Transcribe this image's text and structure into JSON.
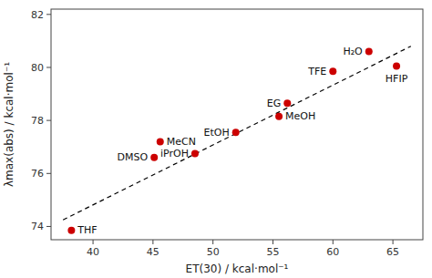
{
  "chart_data": {
    "type": "scatter",
    "x_label": "ET(30) / kcal·mol⁻¹",
    "y_label": "λmax(abs) / kcal·mol⁻¹",
    "labels": [
      "THF",
      "DMSO",
      "MeCN",
      "iPrOH",
      "EtOH",
      "MeOH",
      "EG",
      "TFE",
      "H₂O",
      "HFIP"
    ],
    "x": [
      38.2,
      45.1,
      45.6,
      48.5,
      51.9,
      55.5,
      56.2,
      60.0,
      63.0,
      65.3
    ],
    "values": [
      73.85,
      76.6,
      77.2,
      76.75,
      77.55,
      78.15,
      78.65,
      79.85,
      80.6,
      80.05
    ],
    "color": "#cc0000",
    "trendline": {
      "x": [
        37.5,
        66.5
      ],
      "values": [
        74.25,
        80.8
      ],
      "color": "black",
      "line_style": "dashed"
    },
    "xlim": [
      36.5,
      67.5
    ],
    "ylim": [
      73.5,
      82.2
    ],
    "xticks": [
      40,
      45,
      50,
      55,
      60,
      65
    ],
    "yticks": [
      74,
      76,
      78,
      80,
      82
    ],
    "grid": false
  }
}
